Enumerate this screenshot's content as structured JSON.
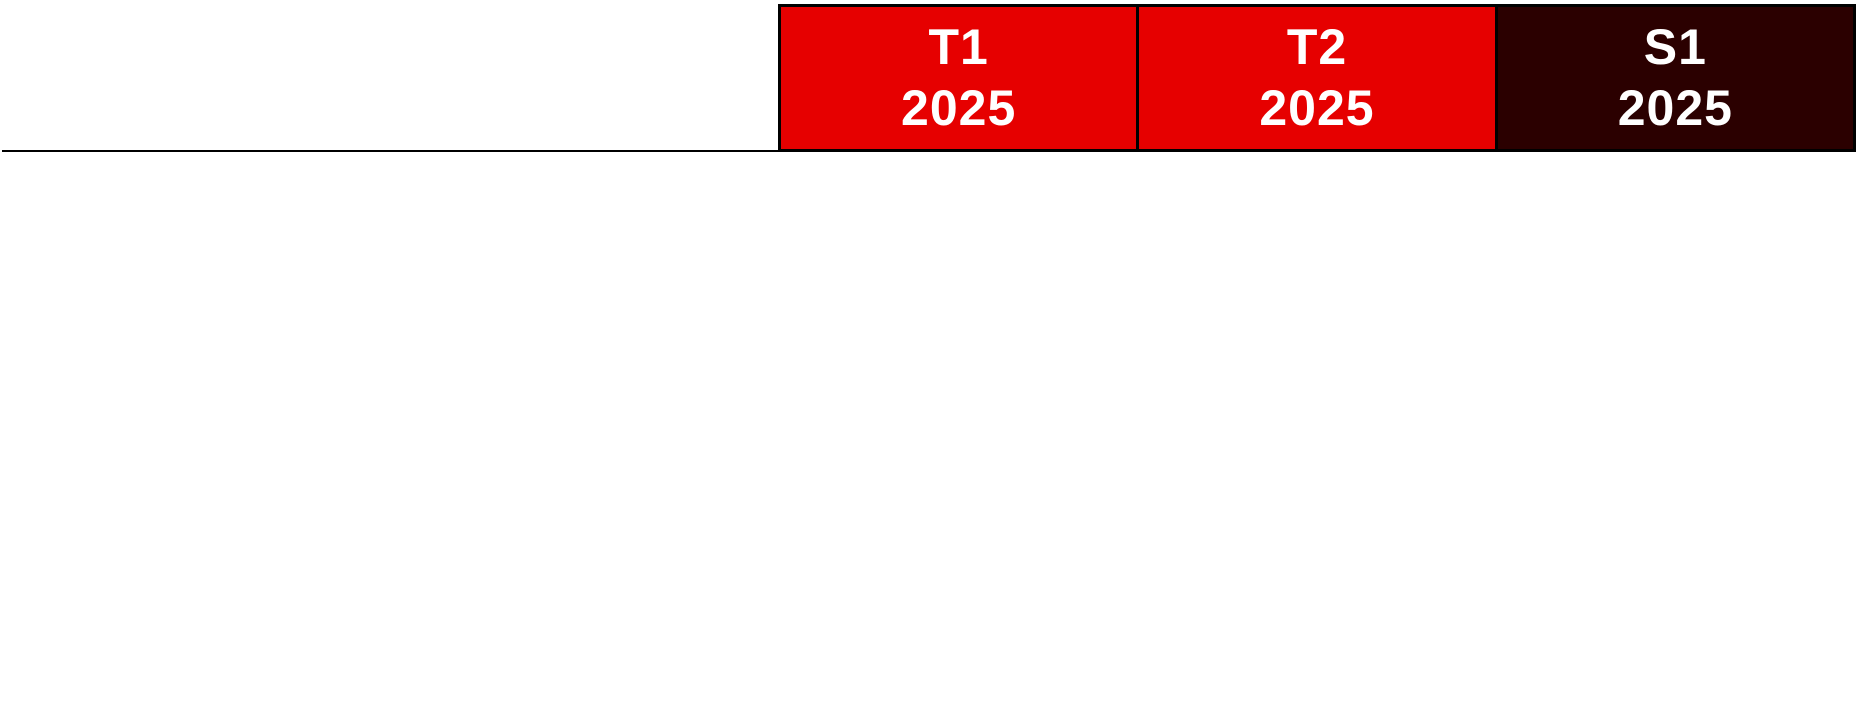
{
  "header": {
    "columns": [
      {
        "line1": "T1",
        "line2": "2025",
        "color": "#e60000"
      },
      {
        "line1": "T2",
        "line2": "2025",
        "color": "#e60000"
      },
      {
        "line1": "S1",
        "line2": "2025",
        "color": "#2b0000"
      }
    ]
  }
}
